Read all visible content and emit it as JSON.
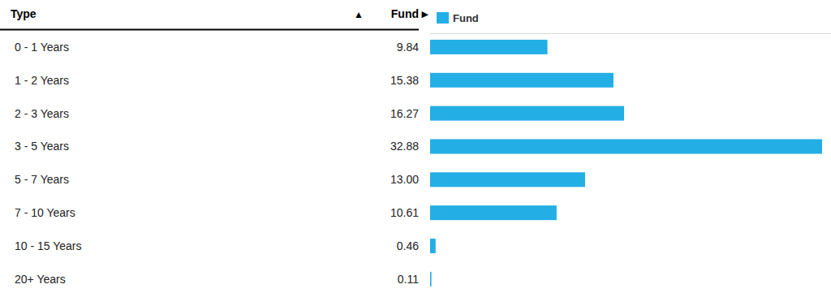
{
  "chart_data": {
    "type": "bar",
    "orientation": "horizontal",
    "category_header": "Type",
    "category_sort_mark": "▲",
    "value_header": "Fund",
    "value_sort_mark": "▶",
    "categories": [
      "0 - 1 Years",
      "1 - 2 Years",
      "2 - 3 Years",
      "3 - 5 Years",
      "5 - 7 Years",
      "7 - 10 Years",
      "10 - 15 Years",
      "20+ Years"
    ],
    "series": [
      {
        "name": "Fund",
        "color": "#23aee5",
        "values": [
          9.84,
          15.38,
          16.27,
          32.88,
          13.0,
          10.61,
          0.46,
          0.11
        ],
        "value_labels": [
          "9.84",
          "15.38",
          "16.27",
          "32.88",
          "13.00",
          "10.61",
          "0.46",
          "0.11"
        ]
      }
    ],
    "data_labels": true,
    "tick_labels": false,
    "legend": "top"
  }
}
